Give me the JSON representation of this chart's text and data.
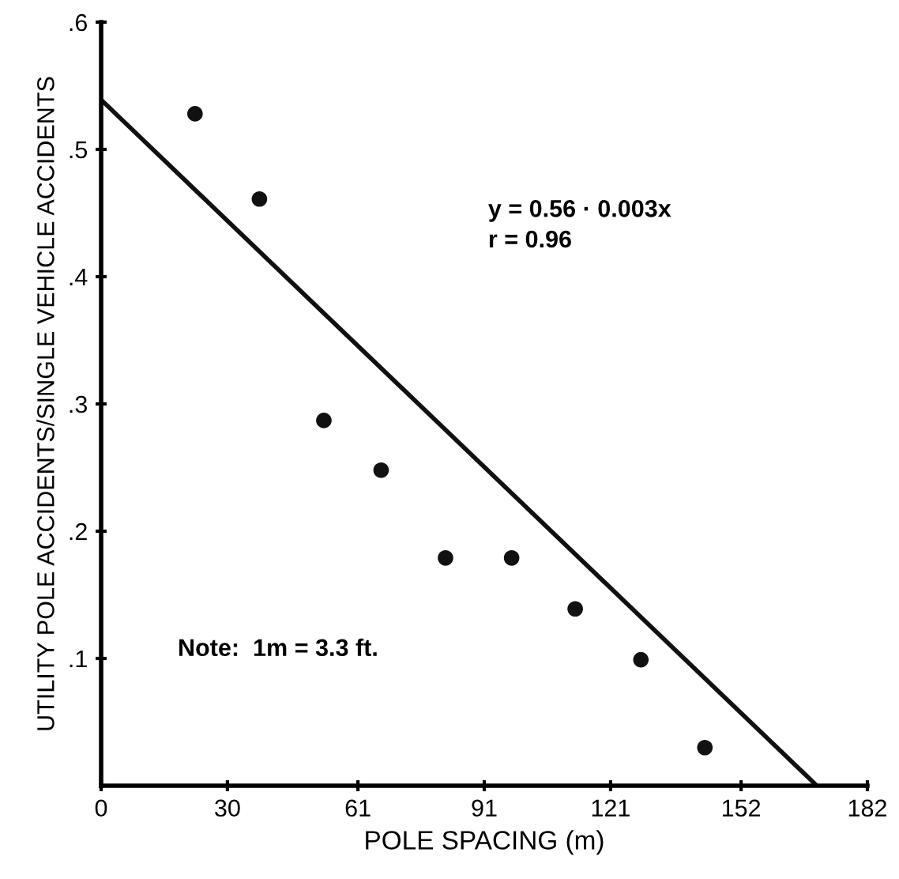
{
  "chart_data": {
    "type": "scatter",
    "xlabel": "POLE SPACING (m)",
    "ylabel": "UTILITY POLE ACCIDENTS/SINGLE VEHICLE ACCIDENTS",
    "xlim": [
      0,
      182
    ],
    "ylim": [
      0,
      0.6
    ],
    "xticks": [
      0,
      30,
      61,
      91,
      121,
      152,
      182
    ],
    "yticks": [
      {
        "value": 0.1,
        "label": ".1"
      },
      {
        "value": 0.2,
        "label": ".2"
      },
      {
        "value": 0.3,
        "label": ".3"
      },
      {
        "value": 0.4,
        "label": ".4"
      },
      {
        "value": 0.5,
        "label": ".5"
      },
      {
        "value": 0.6,
        "label": ".6"
      }
    ],
    "series": [
      {
        "color": "#111111",
        "marker": "circle",
        "x": [
          22.3,
          37.6,
          52.9,
          66.5,
          81.8,
          97.5,
          112.6,
          128.2,
          143.4
        ],
        "values": [
          0.528,
          0.461,
          0.287,
          0.248,
          0.179,
          0.179,
          0.139,
          0.099,
          0.03
        ]
      },
      {
        "type": "line",
        "color": "#111111",
        "line_style": "solid",
        "x": [
          0,
          170.0
        ],
        "values": [
          0.539,
          0
        ]
      }
    ],
    "annotations": [
      "y = 0.56 · 0.003x",
      "r = 0.96",
      "Note:  1m = 3.3 ft."
    ]
  }
}
